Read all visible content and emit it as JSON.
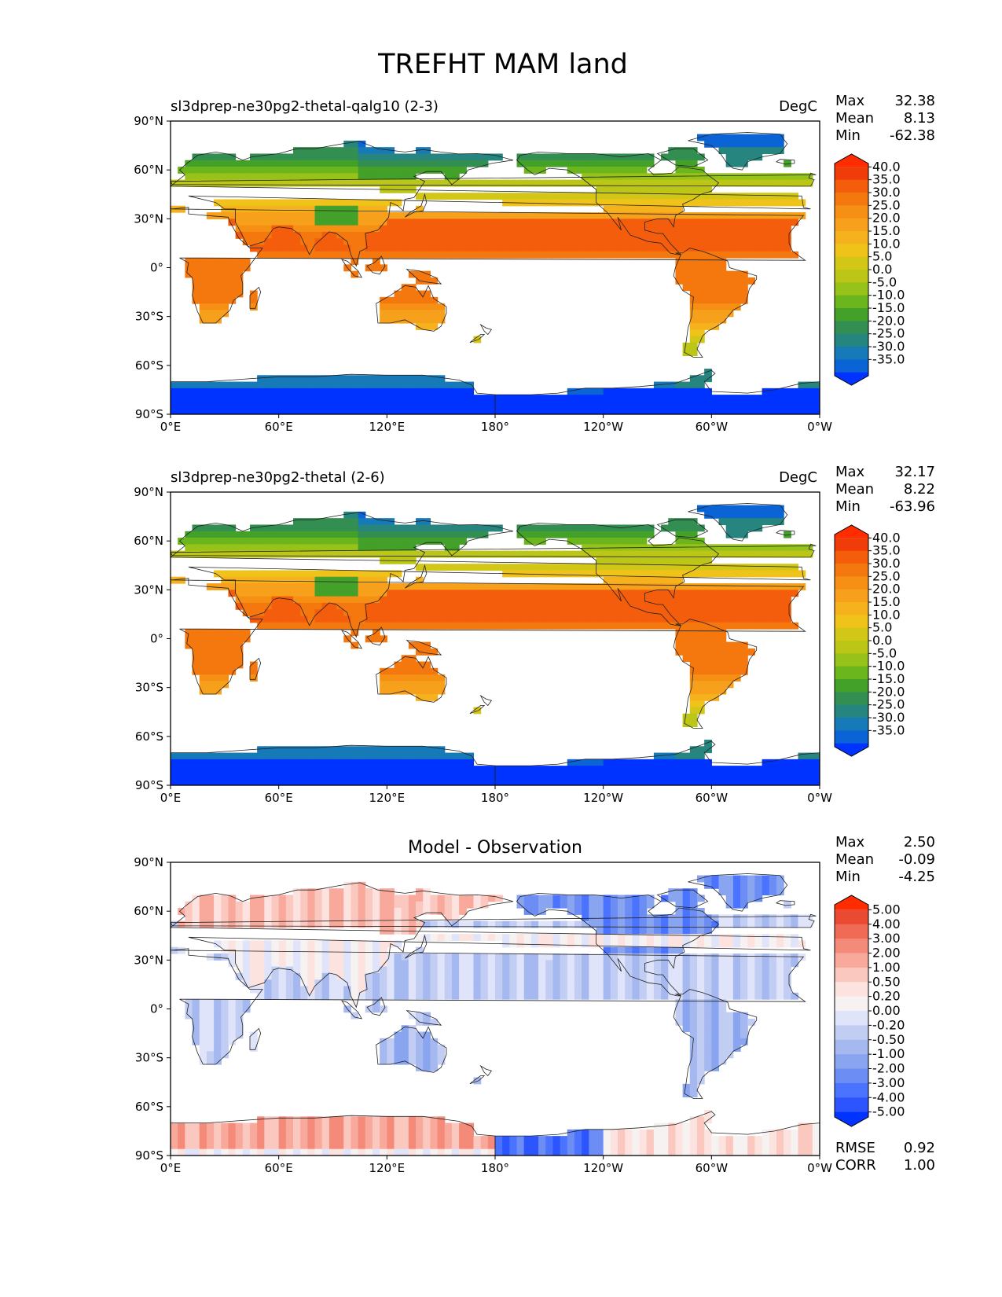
{
  "title": "TREFHT MAM land",
  "colors": {
    "abs_levels": [
      "#0033ff",
      "#0a64d6",
      "#177ab8",
      "#27857f",
      "#338f51",
      "#43a12a",
      "#6bb51d",
      "#96c21a",
      "#bcc617",
      "#d2c716",
      "#efc31a",
      "#f6b21d",
      "#f7a01b",
      "#f59014",
      "#f5780f",
      "#f45d0c",
      "#f03c08",
      "#ff2c00"
    ],
    "diff_levels": [
      "#0033ff",
      "#2c55ff",
      "#4a73ff",
      "#6b8df4",
      "#8aa5f0",
      "#a5b8f0",
      "#c2cdf4",
      "#dfe4fa",
      "#f6f2f2",
      "#fde3df",
      "#fbc8bf",
      "#f8a99b",
      "#f48a79",
      "#f06b56",
      "#ea4a32",
      "#ff2c00"
    ],
    "land_ocean": "#ffffff",
    "coast": "#222222"
  },
  "panels": [
    {
      "title_left": "sl3dprep-ne30pg2-thetal-qalg10 (2-3)",
      "title_center": "",
      "units": "DegC",
      "stats": [
        {
          "label": "Max",
          "value": "32.38"
        },
        {
          "label": "Mean",
          "value": "8.13"
        },
        {
          "label": "Min",
          "value": "-62.38"
        }
      ],
      "colorbar_ticks": [
        "40.0",
        "35.0",
        "30.0",
        "25.0",
        "20.0",
        "15.0",
        "10.0",
        "5.0",
        "0.0",
        "-5.0",
        "-10.0",
        "-15.0",
        "-20.0",
        "-25.0",
        "-30.0",
        "-35.0"
      ],
      "extra_stats": []
    },
    {
      "title_left": "sl3dprep-ne30pg2-thetal (2-6)",
      "title_center": "",
      "units": "DegC",
      "stats": [
        {
          "label": "Max",
          "value": "32.17"
        },
        {
          "label": "Mean",
          "value": "8.22"
        },
        {
          "label": "Min",
          "value": "-63.96"
        }
      ],
      "colorbar_ticks": [
        "40.0",
        "35.0",
        "30.0",
        "25.0",
        "20.0",
        "15.0",
        "10.0",
        "5.0",
        "0.0",
        "-5.0",
        "-10.0",
        "-15.0",
        "-20.0",
        "-25.0",
        "-30.0",
        "-35.0"
      ],
      "extra_stats": []
    },
    {
      "title_left": "",
      "title_center": "Model - Observation",
      "units": "",
      "stats": [
        {
          "label": "Max",
          "value": "2.50"
        },
        {
          "label": "Mean",
          "value": "-0.09"
        },
        {
          "label": "Min",
          "value": "-4.25"
        }
      ],
      "colorbar_ticks": [
        "5.00",
        "4.00",
        "3.00",
        "2.00",
        "1.00",
        "0.50",
        "0.20",
        "0.00",
        "-0.20",
        "-0.50",
        "-1.00",
        "-2.00",
        "-3.00",
        "-4.00",
        "-5.00"
      ],
      "extra_stats": [
        {
          "label": "RMSE",
          "value": "0.92"
        },
        {
          "label": "CORR",
          "value": "1.00"
        }
      ]
    }
  ],
  "chart_data": {
    "type": "heatmap",
    "title": "TREFHT MAM land",
    "projection": "cylindrical (plate carree), central longitude 180",
    "xticks": [
      "0°E",
      "60°E",
      "120°E",
      "180°",
      "120°W",
      "60°W",
      "0°W"
    ],
    "yticks": [
      "90°N",
      "60°N",
      "30°N",
      "0°",
      "30°S",
      "60°S",
      "90°S"
    ],
    "xlim": [
      0,
      360
    ],
    "ylim": [
      -90,
      90
    ],
    "grid": false,
    "panels": [
      {
        "name": "sl3dprep-ne30pg2-thetal-qalg10 (2-3)",
        "units": "DegC",
        "max": 32.38,
        "mean": 8.13,
        "min": -62.38,
        "levels": [
          -35,
          -30,
          -25,
          -20,
          -15,
          -10,
          -5,
          0,
          5,
          10,
          15,
          20,
          25,
          30,
          35,
          40
        ],
        "extend": "both"
      },
      {
        "name": "sl3dprep-ne30pg2-thetal (2-6)",
        "units": "DegC",
        "max": 32.17,
        "mean": 8.22,
        "min": -63.96,
        "levels": [
          -35,
          -30,
          -25,
          -20,
          -15,
          -10,
          -5,
          0,
          5,
          10,
          15,
          20,
          25,
          30,
          35,
          40
        ],
        "extend": "both"
      },
      {
        "name": "Model - Observation",
        "max": 2.5,
        "mean": -0.09,
        "min": -4.25,
        "rmse": 0.92,
        "corr": 1.0,
        "levels": [
          -5,
          -4,
          -3,
          -2,
          -1,
          -0.5,
          -0.2,
          0,
          0.2,
          0.5,
          1,
          2,
          3,
          4,
          5
        ],
        "extend": "both"
      }
    ]
  }
}
